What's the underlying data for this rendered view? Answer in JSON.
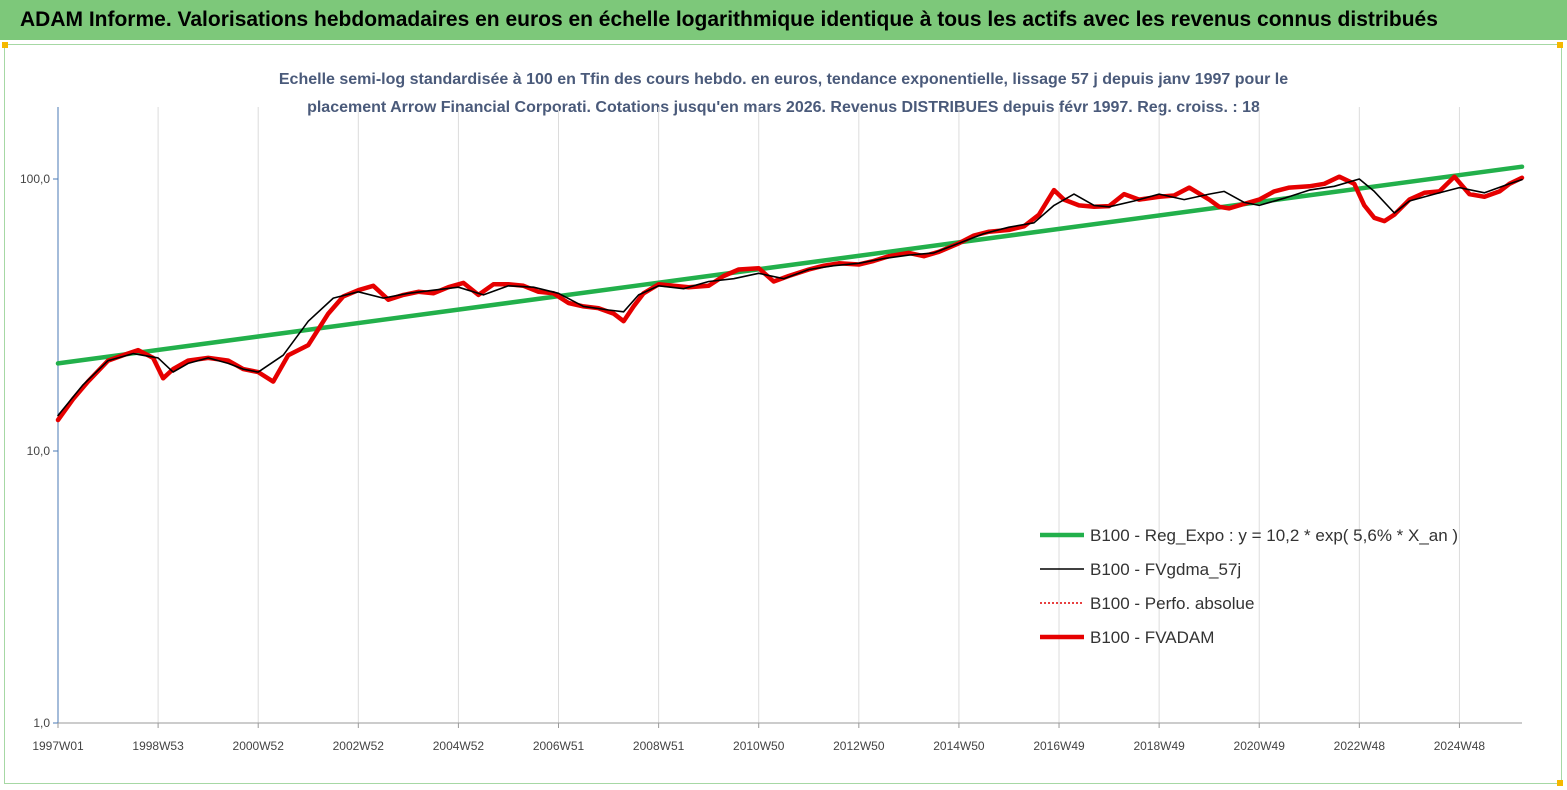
{
  "header": {
    "title": "ADAM Informe. Valorisations hebdomadaires en euros en échelle logarithmique identique à tous les actifs avec les revenus connus distribués"
  },
  "chart_data": {
    "type": "line",
    "title_line1": "Echelle semi-log standardisée à 100 en Tfin des cours hebdo. en euros, tendance exponentielle, lissage 57 j depuis janv 1997 pour le",
    "title_line2": "placement Arrow Financial Corporati. Cotations jusqu'en mars 2026. Revenus DISTRIBUES depuis févr 1997. Reg. croiss. : 18",
    "y_scale": "log",
    "ylim": [
      1,
      200
    ],
    "y_ticks": [
      1,
      10,
      100
    ],
    "y_tick_labels": [
      "1,0",
      "10,0",
      "100,0"
    ],
    "xlim": [
      1997.0,
      2026.25
    ],
    "x_ticks": [
      1997.0,
      1999.0,
      2001.0,
      2003.0,
      2005.0,
      2007.0,
      2009.0,
      2011.0,
      2013.0,
      2015.0,
      2017.0,
      2019.0,
      2021.0,
      2023.0,
      2025.0
    ],
    "x_tick_labels": [
      "1997W01",
      "1998W53",
      "2000W52",
      "2002W52",
      "2004W52",
      "2006W51",
      "2008W51",
      "2010W50",
      "2012W50",
      "2014W50",
      "2016W49",
      "2018W49",
      "2020W49",
      "2022W48",
      "2024W48"
    ],
    "grid": "vertical",
    "legend_position": "bottom-right",
    "series": [
      {
        "name": "B100 - Reg_Expo : y = 10,2 *  exp( 5,6% *   X_an )",
        "color": "#22b04b",
        "style": "thick",
        "x": [
          1997.0,
          2026.25
        ],
        "y": [
          21.0,
          111.0
        ]
      },
      {
        "name": "B100 - FVgdma_57j",
        "color": "#000000",
        "style": "thin",
        "x": [
          1997.0,
          1997.5,
          1998.0,
          1998.5,
          1999.0,
          1999.3,
          1999.6,
          2000.0,
          2000.4,
          2000.7,
          2001.0,
          2001.5,
          2002.0,
          2002.5,
          2003.0,
          2003.5,
          2004.0,
          2004.5,
          2005.0,
          2005.5,
          2006.0,
          2006.5,
          2007.0,
          2007.5,
          2008.0,
          2008.3,
          2008.6,
          2009.0,
          2009.5,
          2010.0,
          2010.5,
          2011.0,
          2011.5,
          2012.0,
          2012.5,
          2013.0,
          2013.5,
          2014.0,
          2014.5,
          2015.0,
          2015.5,
          2016.0,
          2016.5,
          2016.9,
          2017.3,
          2017.7,
          2018.0,
          2018.5,
          2019.0,
          2019.5,
          2020.0,
          2020.3,
          2020.7,
          2021.0,
          2021.5,
          2022.0,
          2022.5,
          2023.0,
          2023.3,
          2023.7,
          2024.0,
          2024.5,
          2025.0,
          2025.5,
          2026.0,
          2026.25
        ],
        "y": [
          13.5,
          17.5,
          21.5,
          22.8,
          22.0,
          19.5,
          21.0,
          22.0,
          21.0,
          20.0,
          19.5,
          22.5,
          30.0,
          36.5,
          38.5,
          36.5,
          38.0,
          39.0,
          40.0,
          37.5,
          40.5,
          40.0,
          38.0,
          34.0,
          33.0,
          32.5,
          37.5,
          40.5,
          39.5,
          42.0,
          43.0,
          45.0,
          43.0,
          46.5,
          48.0,
          49.0,
          51.0,
          52.5,
          53.5,
          58.0,
          63.0,
          66.5,
          69.0,
          80.0,
          88.0,
          80.0,
          79.0,
          83.0,
          88.0,
          84.0,
          88.0,
          90.0,
          82.0,
          80.0,
          85.0,
          91.0,
          94.0,
          100.0,
          90.0,
          75.0,
          83.0,
          88.0,
          93.0,
          89.0,
          96.0,
          99.5
        ]
      },
      {
        "name": "B100 - Perfo. absolue",
        "color": "#e00000",
        "style": "dotted",
        "x": [],
        "y": []
      },
      {
        "name": "B100 - FVADAM",
        "color": "#e60000",
        "style": "thick",
        "x": [
          1997.0,
          1997.3,
          1997.6,
          1998.0,
          1998.3,
          1998.6,
          1998.9,
          1999.1,
          1999.3,
          1999.6,
          2000.0,
          2000.4,
          2000.7,
          2001.0,
          2001.3,
          2001.6,
          2002.0,
          2002.4,
          2002.7,
          2003.0,
          2003.3,
          2003.6,
          2003.9,
          2004.2,
          2004.5,
          2004.8,
          2005.1,
          2005.4,
          2005.7,
          2006.0,
          2006.3,
          2006.6,
          2006.9,
          2007.2,
          2007.5,
          2007.8,
          2008.1,
          2008.3,
          2008.5,
          2008.7,
          2009.0,
          2009.3,
          2009.6,
          2010.0,
          2010.3,
          2010.6,
          2011.0,
          2011.3,
          2011.6,
          2012.0,
          2012.3,
          2012.6,
          2013.0,
          2013.3,
          2013.6,
          2014.0,
          2014.3,
          2014.6,
          2015.0,
          2015.3,
          2015.6,
          2016.0,
          2016.3,
          2016.6,
          2016.9,
          2017.1,
          2017.4,
          2017.7,
          2018.0,
          2018.3,
          2018.6,
          2019.0,
          2019.3,
          2019.6,
          2020.0,
          2020.2,
          2020.4,
          2020.7,
          2021.0,
          2021.3,
          2021.6,
          2022.0,
          2022.3,
          2022.6,
          2022.9,
          2023.1,
          2023.3,
          2023.5,
          2023.7,
          2024.0,
          2024.3,
          2024.6,
          2024.9,
          2025.2,
          2025.5,
          2025.8,
          2026.0,
          2026.25
        ],
        "y": [
          13.0,
          15.5,
          18.0,
          21.5,
          22.5,
          23.5,
          22.0,
          18.5,
          20.0,
          21.5,
          22.0,
          21.5,
          20.0,
          19.5,
          18.0,
          22.5,
          24.5,
          32.0,
          37.0,
          39.0,
          40.5,
          36.0,
          37.5,
          38.5,
          38.0,
          40.0,
          41.5,
          37.5,
          41.0,
          41.0,
          40.5,
          38.5,
          38.0,
          35.0,
          34.0,
          33.5,
          32.0,
          30.0,
          34.0,
          38.0,
          41.0,
          40.5,
          40.0,
          40.5,
          44.0,
          46.5,
          47.0,
          42.0,
          44.0,
          46.5,
          48.0,
          49.0,
          48.5,
          50.0,
          52.0,
          53.5,
          52.0,
          54.0,
          58.0,
          62.0,
          64.0,
          65.0,
          67.0,
          74.0,
          91.0,
          84.0,
          80.0,
          79.0,
          79.5,
          88.0,
          84.0,
          86.0,
          87.0,
          93.0,
          84.0,
          79.0,
          78.0,
          81.0,
          84.0,
          90.0,
          93.0,
          94.0,
          96.0,
          102.0,
          96.0,
          80.0,
          72.0,
          70.0,
          74.0,
          84.0,
          89.0,
          90.0,
          102.0,
          88.0,
          86.0,
          90.0,
          96.0,
          101.0
        ]
      }
    ]
  }
}
